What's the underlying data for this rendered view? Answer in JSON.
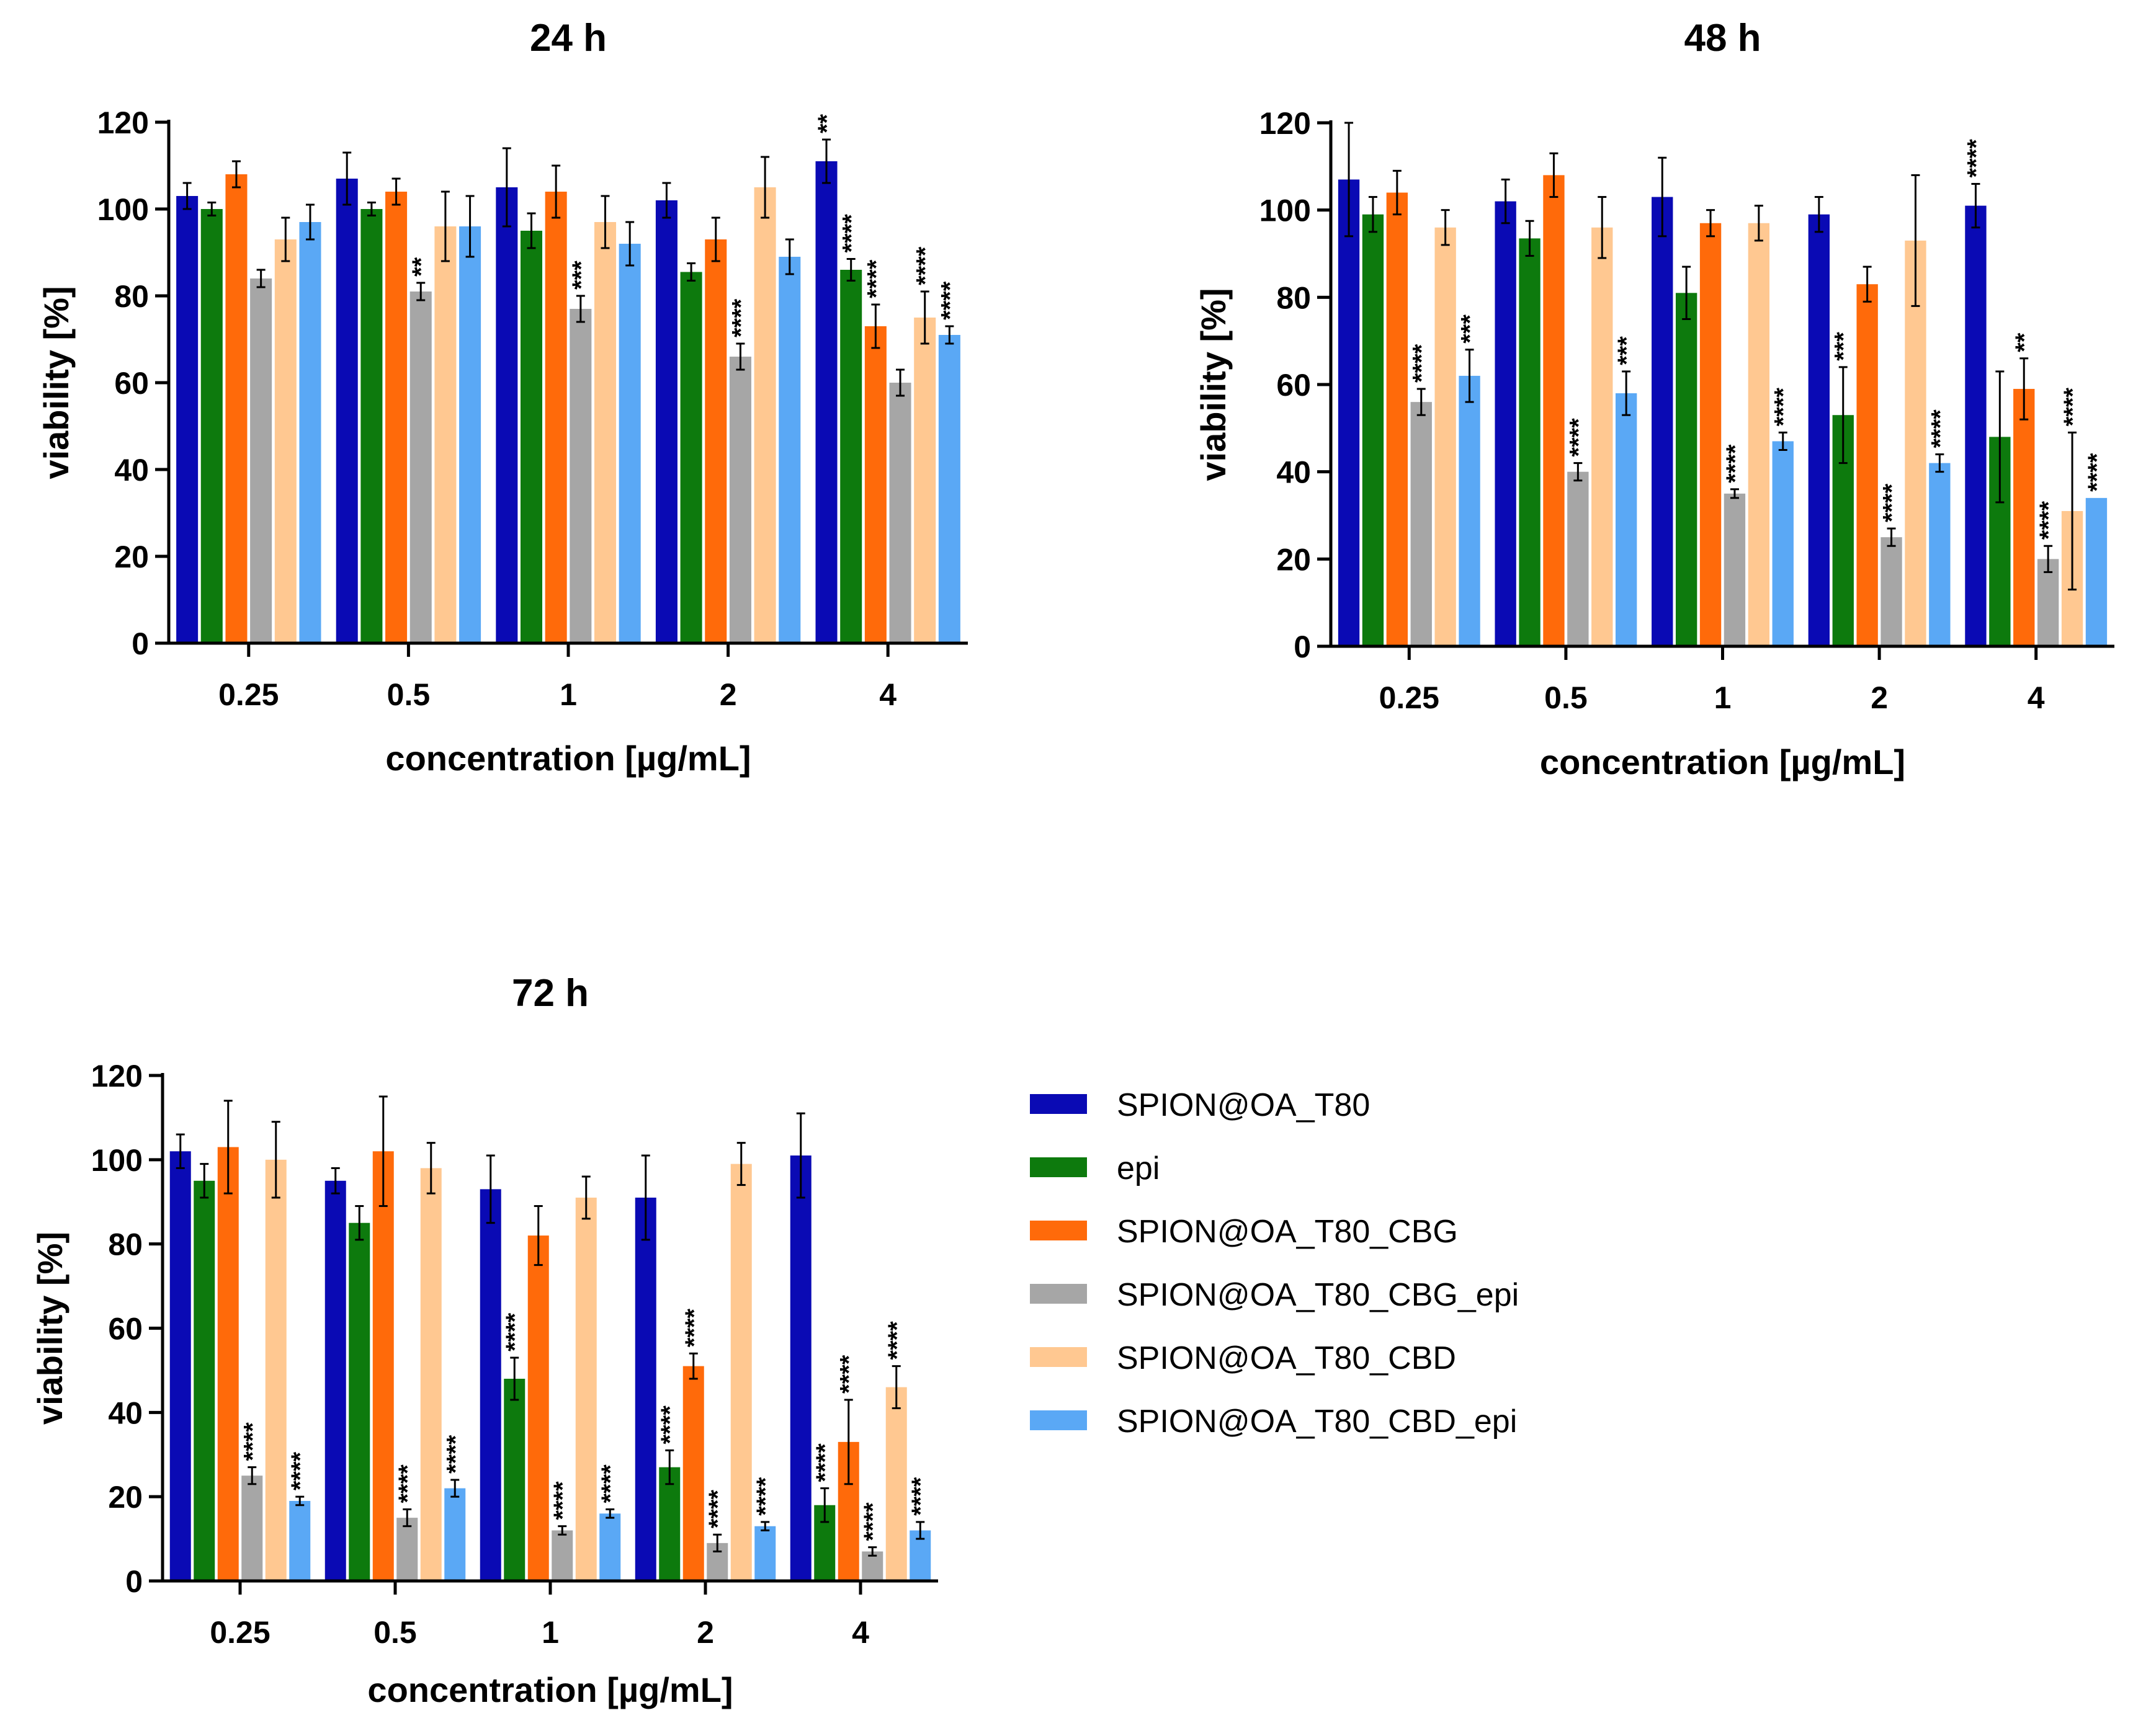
{
  "colors": {
    "axis": "#000000",
    "series": [
      "#0a0ab4",
      "#0d7a0d",
      "#ff6a0a",
      "#a6a6a6",
      "#ffc891",
      "#5aa8f5"
    ]
  },
  "legend": {
    "items": [
      {
        "label": "SPION@OA_T80",
        "color": "#0a0ab4"
      },
      {
        "label": "epi",
        "color": "#0d7a0d"
      },
      {
        "label": "SPION@OA_T80_CBG",
        "color": "#ff6a0a"
      },
      {
        "label": "SPION@OA_T80_CBG_epi",
        "color": "#a6a6a6"
      },
      {
        "label": "SPION@OA_T80_CBD",
        "color": "#ffc891"
      },
      {
        "label": "SPION@OA_T80_CBD_epi",
        "color": "#5aa8f5"
      }
    ]
  },
  "chart_data": [
    {
      "type": "bar",
      "title": "24 h",
      "xlabel": "concentration [µg/mL]",
      "ylabel": "viability [%]",
      "ylim": [
        0,
        120
      ],
      "yticks": [
        0,
        20,
        40,
        60,
        80,
        100,
        120
      ],
      "categories": [
        "0.25",
        "0.5",
        "1",
        "2",
        "4"
      ],
      "series": [
        {
          "name": "SPION@OA_T80",
          "values": [
            103,
            107,
            105,
            102,
            111
          ],
          "errors": [
            3,
            6,
            9,
            4,
            5
          ],
          "stars": [
            "",
            "",
            "",
            "",
            "**"
          ]
        },
        {
          "name": "epi",
          "values": [
            100,
            100,
            95,
            85.5,
            86
          ],
          "errors": [
            1.5,
            1.5,
            4,
            2,
            2.5
          ],
          "stars": [
            "",
            "",
            "",
            "",
            "****"
          ]
        },
        {
          "name": "SPION@OA_T80_CBG",
          "values": [
            108,
            104,
            104,
            93,
            73
          ],
          "errors": [
            3,
            3,
            6,
            5,
            5
          ],
          "stars": [
            "",
            "",
            "",
            "",
            "****"
          ]
        },
        {
          "name": "SPION@OA_T80_CBG_epi",
          "values": [
            84,
            81,
            77,
            66,
            60
          ],
          "errors": [
            2,
            2,
            3,
            3,
            3
          ],
          "stars": [
            "",
            "**",
            "***",
            "****",
            ""
          ]
        },
        {
          "name": "SPION@OA_T80_CBD",
          "values": [
            93,
            96,
            97,
            105,
            75
          ],
          "errors": [
            5,
            8,
            6,
            7,
            6
          ],
          "stars": [
            "",
            "",
            "",
            "",
            "****"
          ]
        },
        {
          "name": "SPION@OA_T80_CBD_epi",
          "values": [
            97,
            96,
            92,
            89,
            71
          ],
          "errors": [
            4,
            7,
            5,
            4,
            2
          ],
          "stars": [
            "",
            "",
            "",
            "",
            "****"
          ]
        }
      ]
    },
    {
      "type": "bar",
      "title": "48 h",
      "xlabel": "concentration [µg/mL]",
      "ylabel": "viability [%]",
      "ylim": [
        0,
        120
      ],
      "yticks": [
        0,
        20,
        40,
        60,
        80,
        100,
        120
      ],
      "categories": [
        "0.25",
        "0.5",
        "1",
        "2",
        "4"
      ],
      "series": [
        {
          "name": "SPION@OA_T80",
          "values": [
            107,
            102,
            103,
            99,
            101
          ],
          "errors": [
            13,
            5,
            9,
            4,
            5
          ],
          "stars": [
            "",
            "",
            "",
            "",
            "****"
          ]
        },
        {
          "name": "epi",
          "values": [
            99,
            93.5,
            81,
            53,
            48
          ],
          "errors": [
            4,
            4,
            6,
            11,
            15
          ],
          "stars": [
            "",
            "",
            "",
            "***",
            ""
          ]
        },
        {
          "name": "SPION@OA_T80_CBG",
          "values": [
            104,
            108,
            97,
            83,
            59
          ],
          "errors": [
            5,
            5,
            3,
            4,
            7
          ],
          "stars": [
            "",
            "",
            "",
            "",
            "**"
          ]
        },
        {
          "name": "SPION@OA_T80_CBG_epi",
          "values": [
            56,
            40,
            35,
            25,
            20
          ],
          "errors": [
            3,
            2,
            1,
            2,
            3
          ],
          "stars": [
            "****",
            "****",
            "****",
            "****",
            "****"
          ]
        },
        {
          "name": "SPION@OA_T80_CBD",
          "values": [
            96,
            96,
            97,
            93,
            31
          ],
          "errors": [
            4,
            7,
            4,
            15,
            18
          ],
          "stars": [
            "",
            "",
            "",
            "",
            "****"
          ]
        },
        {
          "name": "SPION@OA_T80_CBD_epi",
          "values": [
            62,
            58,
            47,
            42,
            34
          ],
          "errors": [
            6,
            5,
            2,
            2,
            0
          ],
          "stars": [
            "***",
            "***",
            "****",
            "****",
            "****"
          ]
        }
      ]
    },
    {
      "type": "bar",
      "title": "72 h",
      "xlabel": "concentration [µg/mL]",
      "ylabel": "viability [%]",
      "ylim": [
        0,
        120
      ],
      "yticks": [
        0,
        20,
        40,
        60,
        80,
        100,
        120
      ],
      "categories": [
        "0.25",
        "0.5",
        "1",
        "2",
        "4"
      ],
      "series": [
        {
          "name": "SPION@OA_T80",
          "values": [
            102,
            95,
            93,
            91,
            101
          ],
          "errors": [
            4,
            3,
            8,
            10,
            10
          ],
          "stars": [
            "",
            "",
            "",
            "",
            ""
          ]
        },
        {
          "name": "epi",
          "values": [
            95,
            85,
            48,
            27,
            18
          ],
          "errors": [
            4,
            4,
            5,
            4,
            4
          ],
          "stars": [
            "",
            "",
            "****",
            "****",
            "****"
          ]
        },
        {
          "name": "SPION@OA_T80_CBG",
          "values": [
            103,
            102,
            82,
            51,
            33
          ],
          "errors": [
            11,
            13,
            7,
            3,
            10
          ],
          "stars": [
            "",
            "",
            "",
            "****",
            "****"
          ]
        },
        {
          "name": "SPION@OA_T80_CBG_epi",
          "values": [
            25,
            15,
            12,
            9,
            7
          ],
          "errors": [
            2,
            2,
            1,
            2,
            1
          ],
          "stars": [
            "****",
            "****",
            "****",
            "****",
            "****"
          ]
        },
        {
          "name": "SPION@OA_T80_CBD",
          "values": [
            100,
            98,
            91,
            99,
            46
          ],
          "errors": [
            9,
            6,
            5,
            5,
            5
          ],
          "stars": [
            "",
            "",
            "",
            "",
            "****"
          ]
        },
        {
          "name": "SPION@OA_T80_CBD_epi",
          "values": [
            19,
            22,
            16,
            13,
            12
          ],
          "errors": [
            1,
            2,
            1,
            1,
            2
          ],
          "stars": [
            "****",
            "****",
            "****",
            "****",
            "****"
          ]
        }
      ]
    }
  ]
}
